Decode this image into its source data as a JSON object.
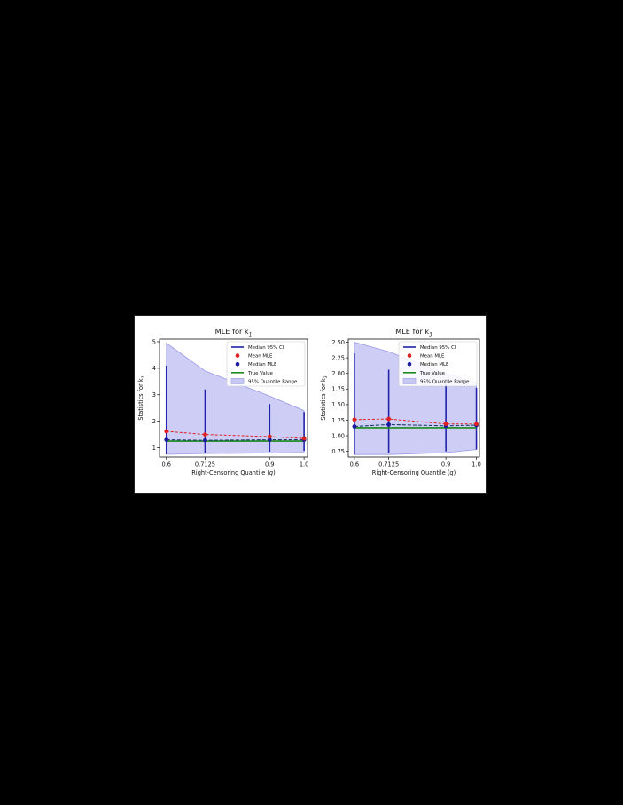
{
  "chart_data": [
    {
      "type": "line",
      "title": "MLE for k",
      "title_subscript": "1",
      "xlabel": "Right-Censoring Quantile (q)",
      "ylabel": "Statistics for k",
      "ylabel_subscript": "1",
      "x": [
        0.6,
        0.7125,
        0.9,
        1.0
      ],
      "x_tick_labels": [
        "0.6",
        "0.7125",
        "0.9",
        "1.0"
      ],
      "xlim": [
        0.58,
        1.01
      ],
      "ylim": [
        0.65,
        5.1
      ],
      "y_ticks": [
        1,
        2,
        3,
        4,
        5
      ],
      "y_tick_labels": [
        "1",
        "2",
        "3",
        "4",
        "5"
      ],
      "legend_position": "top-right",
      "legend": [
        "Median 95% CI",
        "Mean MLE",
        "Median MLE",
        "True Value",
        "95% Quantile Range"
      ],
      "quantile_range": {
        "lower": [
          0.75,
          0.78,
          0.8,
          0.82
        ],
        "upper": [
          4.95,
          3.9,
          2.95,
          2.4
        ]
      },
      "ci": {
        "lower": [
          0.75,
          0.8,
          0.85,
          0.88
        ],
        "upper": [
          4.1,
          3.2,
          2.65,
          2.35
        ]
      },
      "mean_mle": [
        1.62,
        1.5,
        1.42,
        1.35
      ],
      "median_mle": [
        1.3,
        1.28,
        1.3,
        1.3
      ],
      "true_value": [
        1.25,
        1.25,
        1.25,
        1.25
      ]
    },
    {
      "type": "line",
      "title": "MLE for k",
      "title_subscript": "3",
      "xlabel": "Right-Censoring Quantile (q)",
      "ylabel": "Statistics for k",
      "ylabel_subscript": "3",
      "x": [
        0.6,
        0.7125,
        0.9,
        1.0
      ],
      "x_tick_labels": [
        "0.6",
        "0.7125",
        "0.9",
        "1.0"
      ],
      "xlim": [
        0.58,
        1.01
      ],
      "ylim": [
        0.66,
        2.55
      ],
      "y_ticks": [
        0.75,
        1.0,
        1.25,
        1.5,
        1.75,
        2.0,
        2.25,
        2.5
      ],
      "y_tick_labels": [
        "0.75",
        "1.00",
        "1.25",
        "1.50",
        "1.75",
        "2.00",
        "2.25",
        "2.50"
      ],
      "legend_position": "top-right",
      "legend": [
        "Median 95% CI",
        "Mean MLE",
        "Median MLE",
        "True Value",
        "95% Quantile Range"
      ],
      "quantile_range": {
        "lower": [
          0.7,
          0.7,
          0.73,
          0.78
        ],
        "upper": [
          2.5,
          2.35,
          2.0,
          1.85
        ]
      },
      "ci": {
        "lower": [
          0.7,
          0.72,
          0.75,
          0.78
        ],
        "upper": [
          2.32,
          2.06,
          1.83,
          1.77
        ]
      },
      "mean_mle": [
        1.26,
        1.27,
        1.19,
        1.19
      ],
      "median_mle": [
        1.15,
        1.18,
        1.16,
        1.17
      ],
      "true_value": [
        1.13,
        1.13,
        1.13,
        1.13
      ]
    }
  ],
  "colors": {
    "ci": "#2222aa",
    "mean": "#e02020",
    "median": "#1a1aa0",
    "true": "#1a8a1a",
    "band": "#c8c8f4",
    "band_edge": "#9a9ae6",
    "median_dash": "#1a3a6a"
  }
}
